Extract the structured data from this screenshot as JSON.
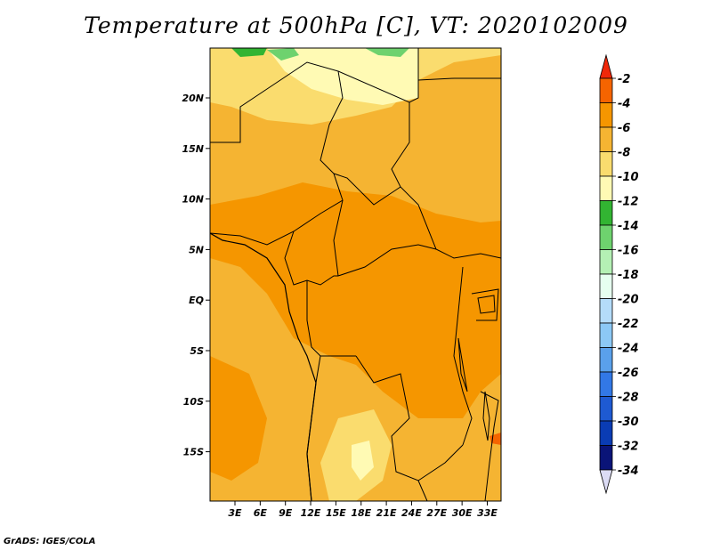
{
  "title": "Temperature at 500hPa [C], VT: 2020102009",
  "credit": "GrADS: IGES/COLA",
  "map": {
    "lat_labels": [
      "20N",
      "15N",
      "10N",
      "5N",
      "EQ",
      "5S",
      "10S",
      "15S"
    ],
    "lon_labels": [
      "3E",
      "6E",
      "9E",
      "12E",
      "15E",
      "18E",
      "21E",
      "24E",
      "27E",
      "30E",
      "33E"
    ]
  },
  "colorbar": {
    "labels": [
      "-2",
      "-4",
      "-6",
      "-8",
      "-10",
      "-12",
      "-14",
      "-16",
      "-18",
      "-20",
      "-22",
      "-24",
      "-26",
      "-28",
      "-30",
      "-32",
      "-34"
    ],
    "colors": [
      "#f0280a",
      "#f56400",
      "#f59600",
      "#f5b432",
      "#fadc6e",
      "#fffab4",
      "#32b432",
      "#6ed26e",
      "#b4f0b4",
      "#e6fff0",
      "#b4dcfa",
      "#8cc8f5",
      "#5aa0eb",
      "#3278e6",
      "#1e5ad2",
      "#0a3cb4",
      "#0a1478",
      "#dcdcf5"
    ]
  }
}
